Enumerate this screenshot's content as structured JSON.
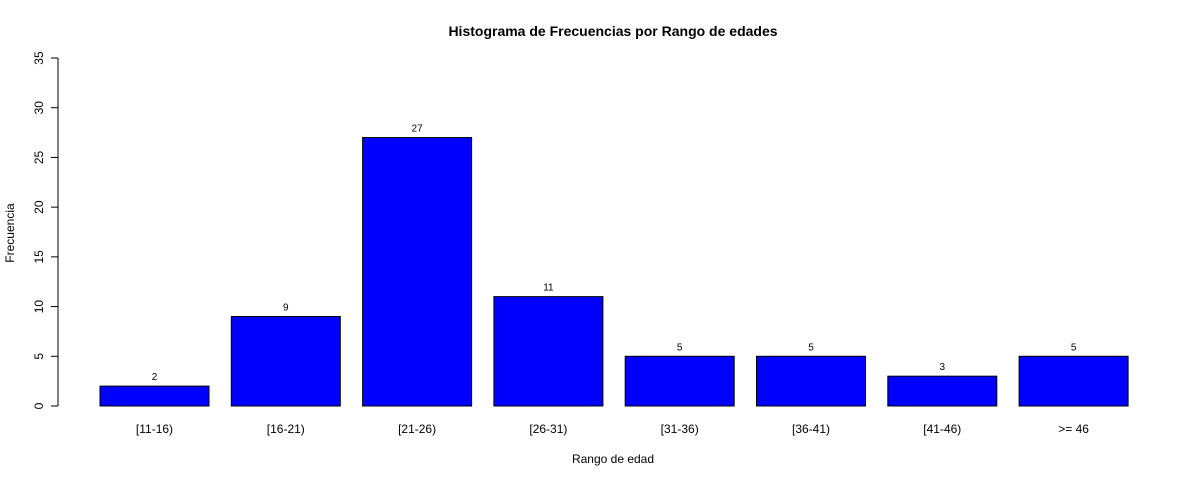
{
  "chart_data": {
    "type": "bar",
    "title": "Histograma de Frecuencias por Rango de edades",
    "xlabel": "Rango de edad",
    "ylabel": "Frecuencia",
    "categories": [
      "[11-16)",
      "[16-21)",
      "[21-26)",
      "[26-31)",
      "[31-36)",
      "[36-41)",
      "[41-46)",
      ">= 46"
    ],
    "values": [
      2,
      9,
      27,
      11,
      5,
      5,
      3,
      5
    ],
    "ylim": [
      0,
      35
    ],
    "yticks": [
      0,
      5,
      10,
      15,
      20,
      25,
      30,
      35
    ],
    "bar_color": "#0000ff",
    "bar_border_color": "#000000",
    "grid": false,
    "legend": false
  }
}
